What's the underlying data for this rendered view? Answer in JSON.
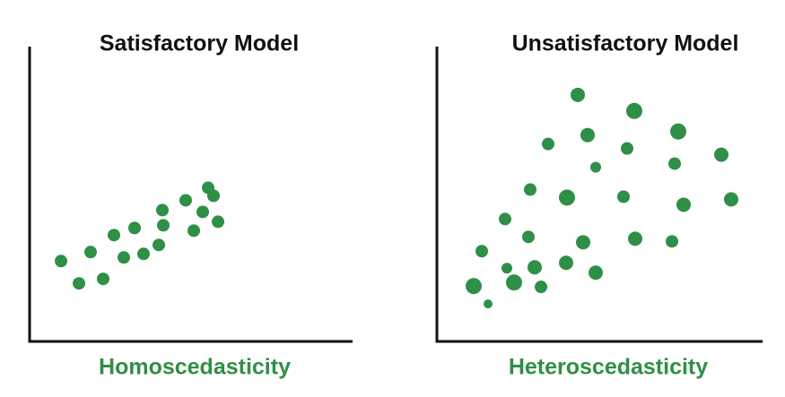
{
  "chart_data": [
    {
      "type": "scatter",
      "title": "Satisfactory Model",
      "xlabel": "Homoscedasticity",
      "color": "#2f8f46",
      "xlim": [
        0,
        360
      ],
      "ylim": [
        0,
        330
      ],
      "x": [
        35,
        55,
        68,
        82,
        94,
        105,
        117,
        127,
        144,
        148,
        149,
        174,
        183,
        193,
        199,
        205,
        210
      ],
      "values": [
        90,
        65,
        100,
        70,
        119,
        94,
        127,
        98,
        108,
        147,
        130,
        158,
        124,
        145,
        172,
        163,
        134
      ]
    },
    {
      "type": "scatter",
      "title": "Unsatisfactory Model",
      "xlabel": "Heteroscedasticity",
      "color": "#2f8f46",
      "xlim": [
        0,
        360
      ],
      "ylim": [
        0,
        330
      ],
      "x": [
        157,
        220,
        124,
        168,
        212,
        269,
        177,
        265,
        317,
        104,
        145,
        208,
        275,
        328,
        76,
        102,
        163,
        221,
        262,
        50,
        78,
        109,
        144,
        177,
        41,
        86,
        116,
        57
      ],
      "values": [
        276,
        258,
        221,
        231,
        216,
        235,
        195,
        199,
        209,
        170,
        161,
        162,
        153,
        159,
        137,
        117,
        111,
        115,
        112,
        101,
        82,
        83,
        88,
        77,
        62,
        66,
        61,
        42
      ],
      "sizes": [
        8,
        9,
        7,
        8,
        7,
        9,
        6,
        7,
        8,
        7,
        9,
        7,
        8,
        8,
        7,
        7,
        8,
        8,
        7,
        7,
        6,
        8,
        8,
        8,
        9,
        9,
        7,
        5
      ]
    }
  ]
}
